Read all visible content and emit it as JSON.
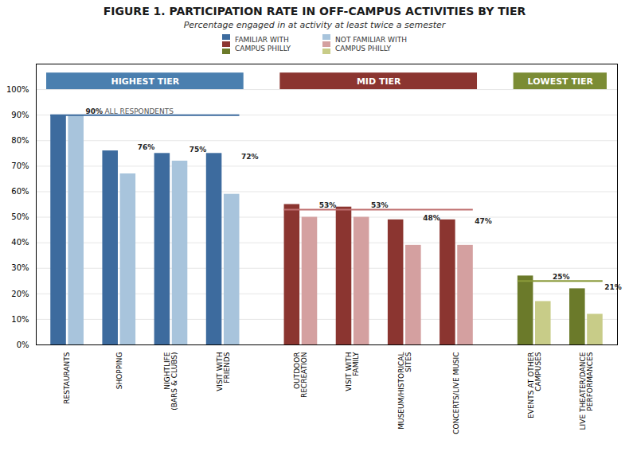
{
  "chart_data": {
    "type": "bar",
    "title": "FIGURE 1. PARTICIPATION RATE IN OFF-CAMPUS ACTIVITIES BY TIER",
    "subtitle": "Percentage engaged in at activity at least twice a semester",
    "categories": [
      "RESTAURANTS",
      "SHOPPING",
      "NIGHTLIFE\n(BARS & CLUBS)",
      "VISIT WITH\nFRIENDS",
      "OUTDOOR\nRECREATION",
      "VISIT WITH\nFAMILY",
      "MUSEUM/HISTORICAL\nSITES",
      "CONCERTS/LIVE MUSIC",
      "EVENTS AT OTHER\nCAMPUSES",
      "LIVE THEATER/DANCE\nPERFORMANCES"
    ],
    "series": [
      {
        "name": "FAMILIAR WITH\nCAMPUS PHILLY",
        "colors": [
          "#3d6b9e",
          "#3d6b9e",
          "#3d6b9e",
          "#3d6b9e",
          "#8b3530",
          "#8b3530",
          "#8b3530",
          "#8b3530",
          "#6b7a2a",
          "#6b7a2a"
        ],
        "values": [
          90,
          76,
          75,
          75,
          55,
          54,
          49,
          49,
          27,
          22
        ]
      },
      {
        "name": "NOT FAMILIAR WITH\nCAMPUS PHILLY",
        "colors": [
          "#a8c4dc",
          "#a8c4dc",
          "#a8c4dc",
          "#a8c4dc",
          "#d4a0a0",
          "#d4a0a0",
          "#d4a0a0",
          "#d4a0a0",
          "#c8cc88",
          "#c8cc88"
        ],
        "values": [
          90,
          67,
          72,
          59,
          50,
          50,
          39,
          39,
          17,
          12
        ]
      }
    ],
    "tiers": [
      {
        "name": "HIGHEST TIER",
        "color": "#4a7faf",
        "all_respondents": 90,
        "line_color": "#3d6b9e"
      },
      {
        "name": "MID TIER",
        "color": "#8b3530",
        "all_respondents": 53,
        "line_color": "#c07070"
      },
      {
        "name": "LOWEST TIER",
        "color": "#7b8c35",
        "all_respondents": 25,
        "line_color": "#8a9a3a"
      }
    ],
    "tier_of_category": [
      0,
      0,
      0,
      0,
      1,
      1,
      1,
      1,
      2,
      2
    ],
    "annotations": {
      "label": "ALL RESPONDENTS",
      "values": [
        90,
        76,
        75,
        72,
        53,
        53,
        48,
        47,
        25,
        21
      ],
      "value_labels": [
        "90%",
        "76%",
        "75%",
        "72%",
        "53%",
        "53%",
        "48%",
        "47%",
        "25%",
        "21%"
      ]
    },
    "ylim": [
      0,
      110
    ],
    "yticks": [
      {
        "value": 0,
        "label": "0%"
      },
      {
        "value": 10,
        "label": "10%"
      },
      {
        "value": 20,
        "label": "20%"
      },
      {
        "value": 30,
        "label": "30%"
      },
      {
        "value": 40,
        "label": "40%"
      },
      {
        "value": 50,
        "label": "50%"
      },
      {
        "value": 60,
        "label": "60%"
      },
      {
        "value": 70,
        "label": "70%"
      },
      {
        "value": 80,
        "label": "80%"
      },
      {
        "value": 90,
        "label": "90%"
      },
      {
        "value": 100,
        "label": "100%"
      }
    ],
    "grid": true,
    "legend": "top"
  }
}
